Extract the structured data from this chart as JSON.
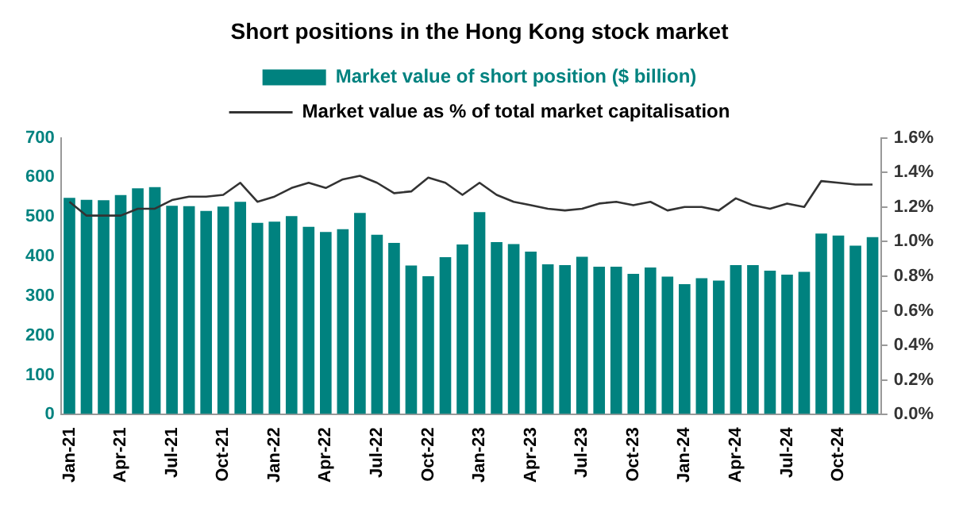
{
  "chart_data": {
    "type": "bar",
    "title": "Short positions in the Hong Kong stock market",
    "categories": [
      "Jan-21",
      null,
      null,
      "Apr-21",
      null,
      null,
      "Jul-21",
      null,
      null,
      "Oct-21",
      null,
      null,
      "Jan-22",
      null,
      null,
      "Apr-22",
      null,
      null,
      "Jul-22",
      null,
      null,
      "Oct-22",
      null,
      null,
      "Jan-23",
      null,
      null,
      "Apr-23",
      null,
      null,
      "Jul-23",
      null,
      null,
      "Oct-23",
      null,
      null,
      "Jan-24",
      null,
      null,
      "Apr-24",
      null,
      null,
      "Jul-24",
      null,
      null,
      "Oct-24",
      null,
      null
    ],
    "series": [
      {
        "name": "Market value of short position ($ billion)",
        "color": "#00827f",
        "values": [
          548,
          543,
          542,
          555,
          572,
          575,
          528,
          527,
          515,
          526,
          538,
          485,
          488,
          502,
          475,
          462,
          469,
          510,
          455,
          434,
          377,
          350,
          398,
          430,
          512,
          436,
          431,
          412,
          380,
          378,
          399,
          374,
          374,
          356,
          372,
          349,
          330,
          345,
          339,
          378,
          378,
          364,
          354,
          361,
          458,
          453,
          427,
          449
        ]
      },
      {
        "name": "Market value as % of total market capitalisation",
        "type": "line",
        "axis": "y2",
        "color": "#333333",
        "values": [
          1.23,
          1.15,
          1.15,
          1.15,
          1.19,
          1.19,
          1.24,
          1.26,
          1.26,
          1.27,
          1.34,
          1.23,
          1.26,
          1.31,
          1.34,
          1.31,
          1.36,
          1.38,
          1.34,
          1.28,
          1.29,
          1.37,
          1.34,
          1.27,
          1.34,
          1.27,
          1.23,
          1.21,
          1.19,
          1.18,
          1.19,
          1.22,
          1.23,
          1.21,
          1.23,
          1.18,
          1.2,
          1.2,
          1.18,
          1.25,
          1.21,
          1.19,
          1.22,
          1.2,
          1.35,
          1.34,
          1.33,
          1.33
        ]
      }
    ],
    "ylim": [
      0,
      700
    ],
    "yticks": [
      0,
      100,
      200,
      300,
      400,
      500,
      600,
      700
    ],
    "y2lim": [
      0,
      1.6
    ],
    "y2ticks": [
      {
        "value": 0,
        "label": "0.0%"
      },
      {
        "value": 0.2,
        "label": "0.2%"
      },
      {
        "value": 0.4,
        "label": "0.4%"
      },
      {
        "value": 0.6,
        "label": "0.6%"
      },
      {
        "value": 0.8,
        "label": "0.8%"
      },
      {
        "value": 1.0,
        "label": "1.0%"
      },
      {
        "value": 1.2,
        "label": "1.2%"
      },
      {
        "value": 1.4,
        "label": "1.4%"
      },
      {
        "value": 1.6,
        "label": "1.6%"
      }
    ],
    "grid": false,
    "legend": "top",
    "marker": "none",
    "line_style": "solid"
  }
}
